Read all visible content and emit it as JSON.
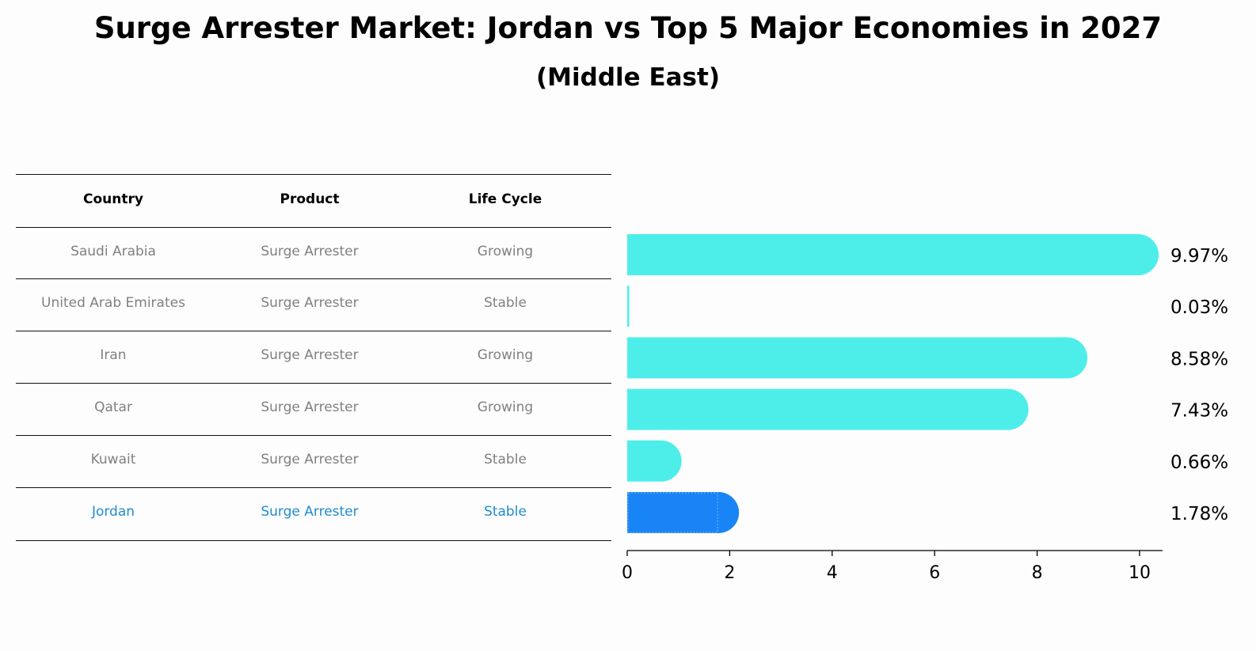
{
  "title": "Surge Arrester Market: Jordan vs Top 5 Major Economies in 2027",
  "subtitle": "(Middle East)",
  "table": {
    "headers": [
      "Country",
      "Product",
      "Life Cycle"
    ],
    "rows": [
      {
        "country": "Saudi Arabia",
        "product": "Surge Arrester",
        "life_cycle": "Growing"
      },
      {
        "country": "United Arab Emirates",
        "product": "Surge Arrester",
        "life_cycle": "Stable"
      },
      {
        "country": "Iran",
        "product": "Surge Arrester",
        "life_cycle": "Growing"
      },
      {
        "country": "Qatar",
        "product": "Surge Arrester",
        "life_cycle": "Growing"
      },
      {
        "country": "Kuwait",
        "product": "Surge Arrester",
        "life_cycle": "Stable"
      },
      {
        "country": "Jordan",
        "product": "Surge Arrester",
        "life_cycle": "Stable"
      }
    ]
  },
  "chart_data": {
    "type": "bar",
    "orientation": "horizontal",
    "title": "Surge Arrester Market: Jordan vs Top 5 Major Economies in 2027",
    "subtitle": "(Middle East)",
    "categories": [
      "Saudi Arabia",
      "United Arab Emirates",
      "Iran",
      "Qatar",
      "Kuwait",
      "Jordan"
    ],
    "values": [
      9.97,
      0.03,
      8.58,
      7.43,
      0.66,
      1.78
    ],
    "value_labels": [
      "9.97%",
      "0.03%",
      "8.58%",
      "7.43%",
      "0.66%",
      "1.78%"
    ],
    "highlight": "Jordan",
    "xlim": [
      0,
      10.5
    ],
    "xticks": [
      0,
      2,
      4,
      6,
      8,
      10
    ],
    "xlabel": "",
    "ylabel": "",
    "grid": false,
    "colors": {
      "default": "#4deeea",
      "highlight": "#1984f5"
    }
  }
}
